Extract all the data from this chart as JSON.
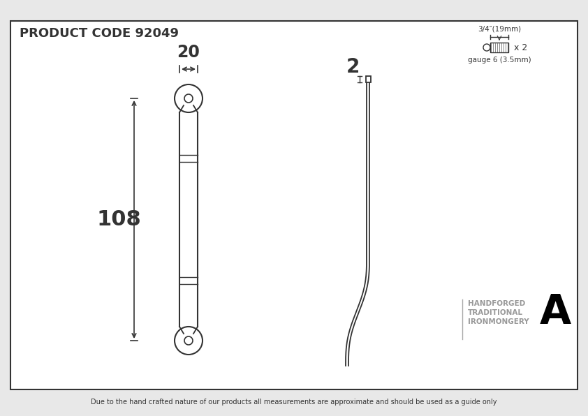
{
  "bg_color": "#e8e8e8",
  "inner_bg": "#ffffff",
  "border_color": "#333333",
  "line_color": "#333333",
  "title": "PRODUCT CODE 92049",
  "title_fontsize": 13,
  "dim_20": "20",
  "dim_108": "108",
  "dim_2": "2",
  "dim_screw_label": "3/4″(19mm)",
  "dim_gauge": "gauge 6 (3.5mm)",
  "dim_x2": "x 2",
  "footer": "Due to the hand crafted nature of our products all measurements are approximate and should be used as a guide only",
  "brand_line1": "HANDFORGED",
  "brand_line2": "TRADITIONAL",
  "brand_line3": "IRONMONGERY"
}
